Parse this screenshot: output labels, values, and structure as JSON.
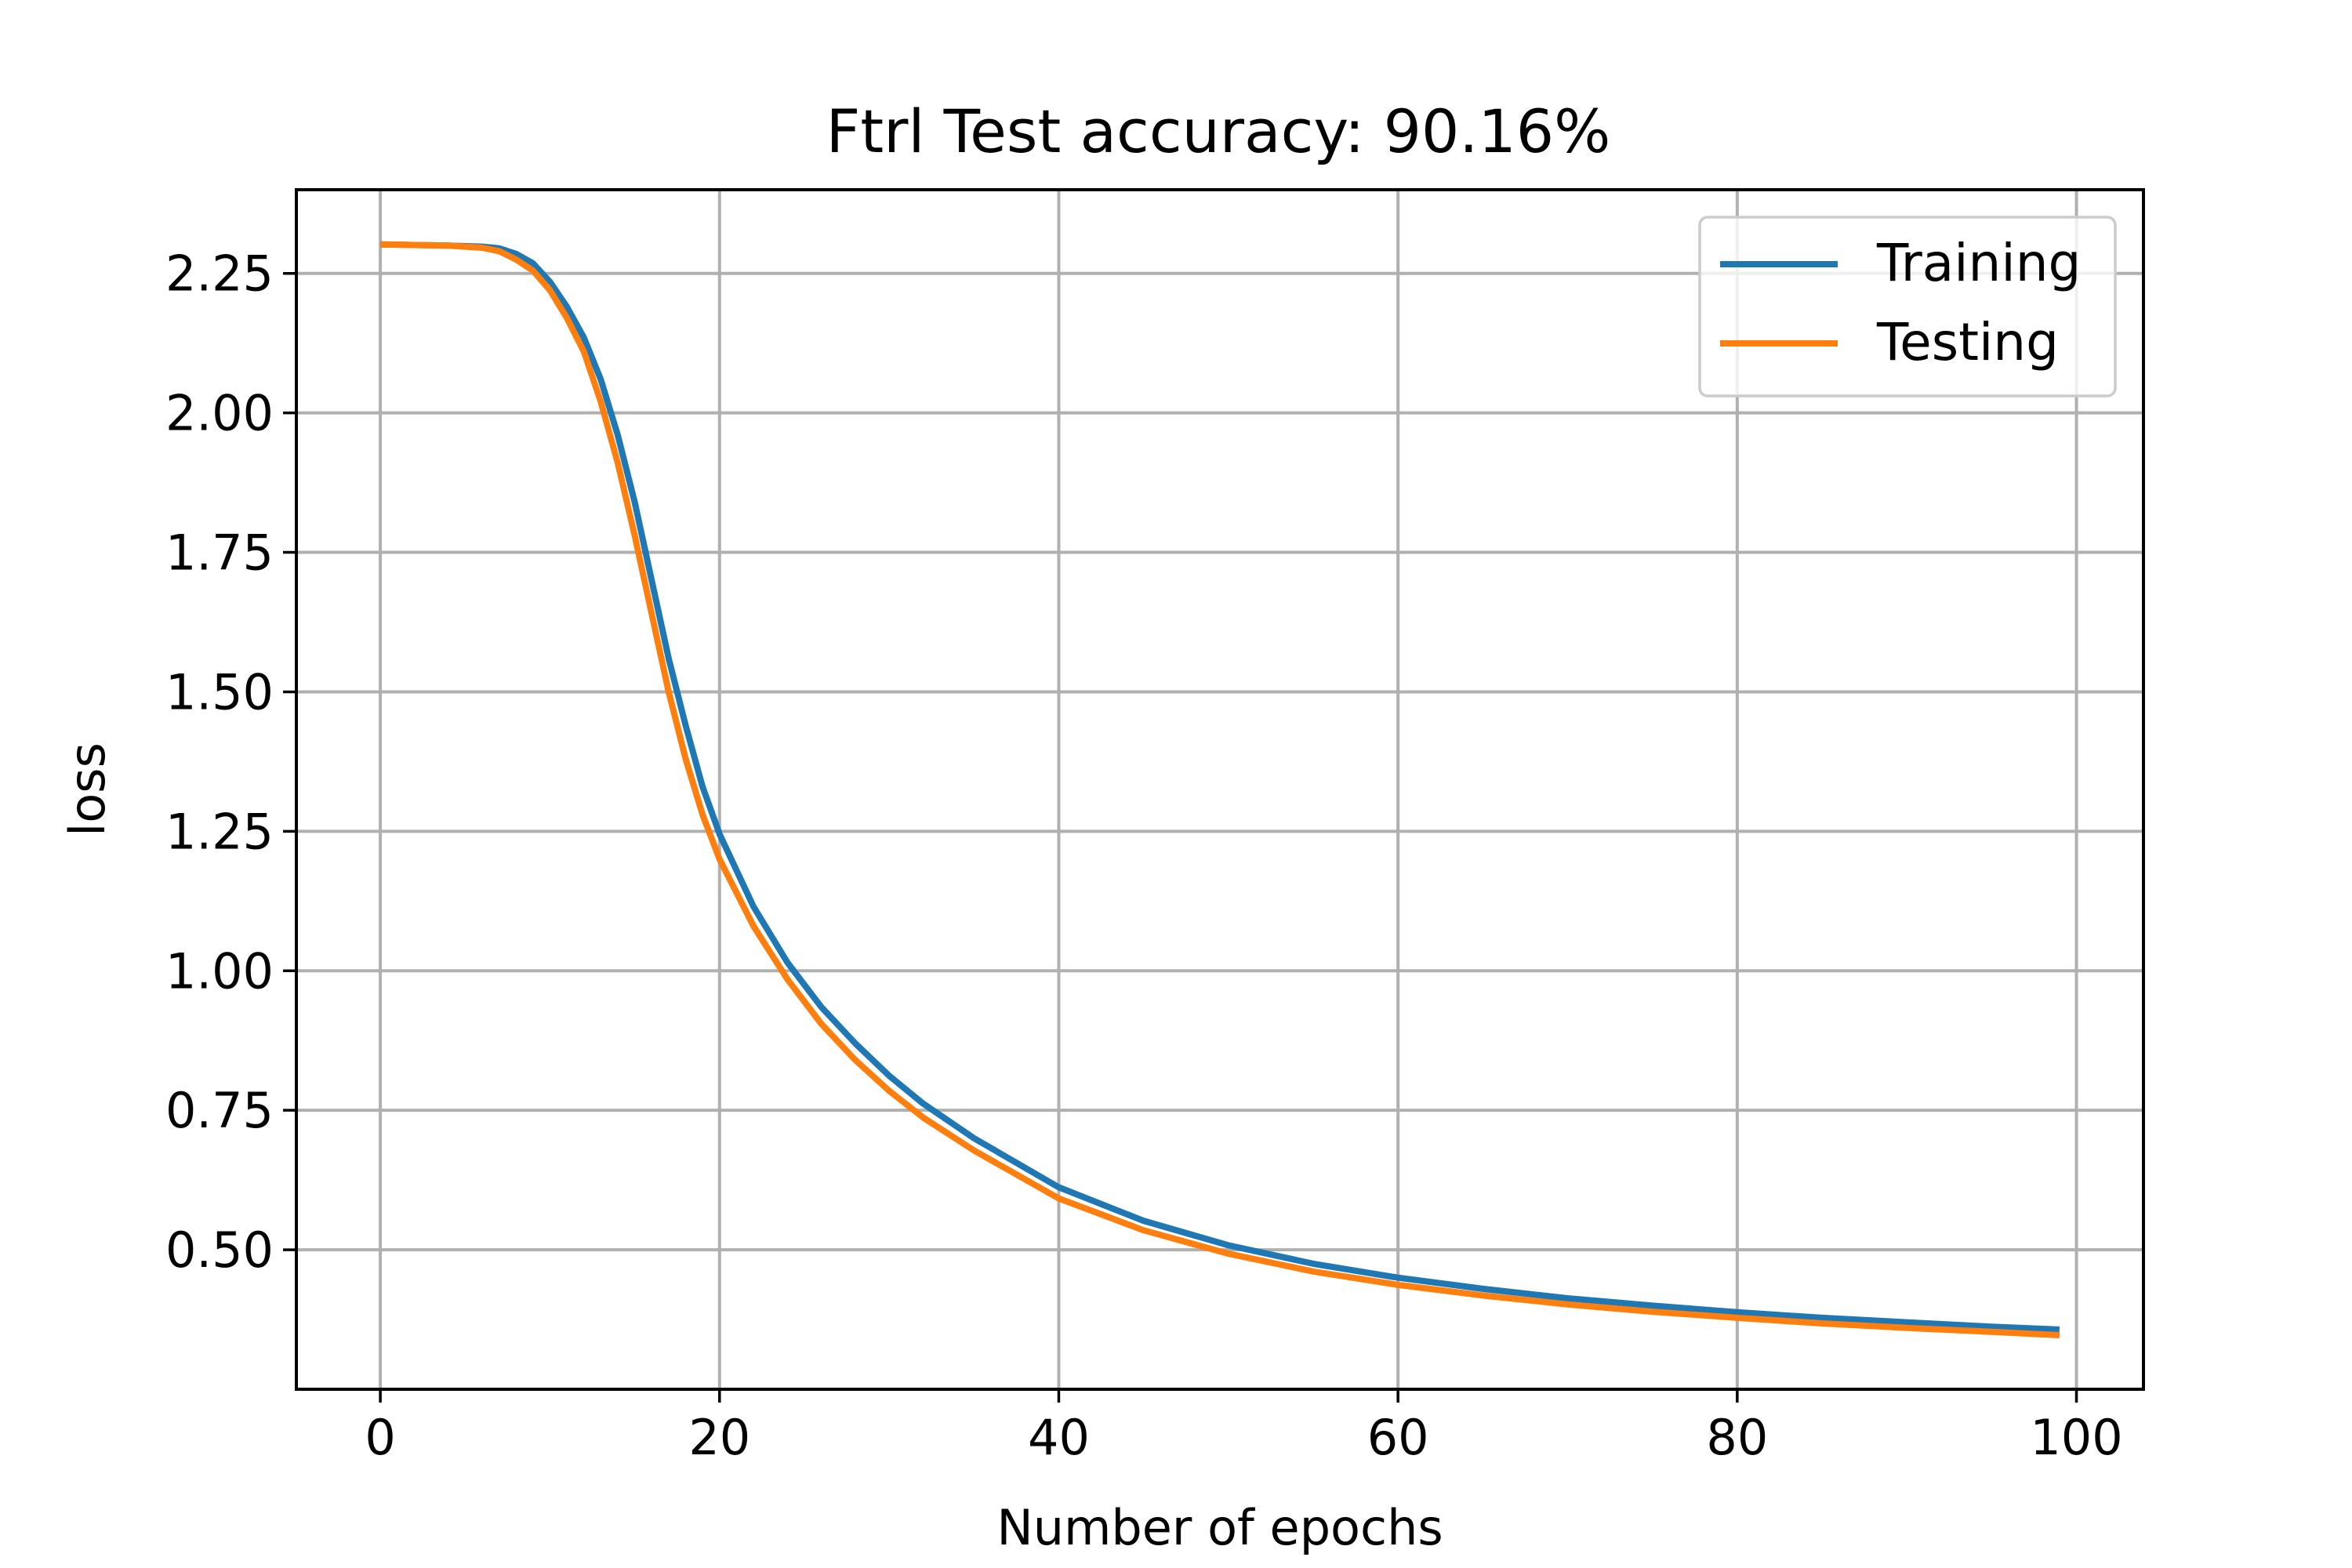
{
  "chart_data": {
    "type": "line",
    "title": "Ftrl Test accuracy: 90.16%",
    "xlabel": "Number of epochs",
    "ylabel": "loss",
    "xlim": [
      -4.95,
      103.95
    ],
    "ylim": [
      0.25,
      2.4
    ],
    "xticks": [
      0,
      20,
      40,
      60,
      80,
      100
    ],
    "yticks": [
      0.5,
      0.75,
      1.0,
      1.25,
      1.5,
      1.75,
      2.0,
      2.25
    ],
    "xtick_labels": [
      "0",
      "20",
      "40",
      "60",
      "80",
      "100"
    ],
    "ytick_labels": [
      "0.50",
      "0.75",
      "1.00",
      "1.25",
      "1.50",
      "1.75",
      "2.00",
      "2.25"
    ],
    "grid": true,
    "legend_position": "top-right",
    "series": [
      {
        "name": "Training",
        "color": "#1f77b4",
        "x": [
          0,
          2,
          4,
          6,
          7,
          8,
          9,
          10,
          11,
          12,
          13,
          14,
          15,
          16,
          17,
          18,
          19,
          20,
          22,
          24,
          26,
          28,
          30,
          32,
          35,
          40,
          45,
          50,
          55,
          60,
          65,
          70,
          75,
          80,
          85,
          90,
          95,
          99
        ],
        "values": [
          2.302,
          2.301,
          2.3,
          2.298,
          2.295,
          2.285,
          2.268,
          2.235,
          2.19,
          2.135,
          2.06,
          1.96,
          1.84,
          1.7,
          1.56,
          1.44,
          1.33,
          1.245,
          1.115,
          1.015,
          0.935,
          0.87,
          0.812,
          0.762,
          0.7,
          0.612,
          0.552,
          0.508,
          0.475,
          0.45,
          0.43,
          0.413,
          0.4,
          0.388,
          0.378,
          0.37,
          0.362,
          0.357
        ]
      },
      {
        "name": "Testing",
        "color": "#ff7f0e",
        "x": [
          0,
          2,
          4,
          6,
          7,
          8,
          9,
          10,
          11,
          12,
          13,
          14,
          15,
          16,
          17,
          18,
          19,
          20,
          22,
          24,
          26,
          28,
          30,
          32,
          35,
          40,
          45,
          50,
          55,
          60,
          65,
          70,
          75,
          80,
          85,
          90,
          95,
          99
        ],
        "values": [
          2.302,
          2.301,
          2.3,
          2.296,
          2.29,
          2.275,
          2.255,
          2.22,
          2.17,
          2.11,
          2.02,
          1.91,
          1.78,
          1.64,
          1.5,
          1.38,
          1.28,
          1.2,
          1.08,
          0.985,
          0.905,
          0.84,
          0.785,
          0.737,
          0.678,
          0.592,
          0.535,
          0.493,
          0.461,
          0.437,
          0.418,
          0.402,
          0.389,
          0.378,
          0.368,
          0.36,
          0.353,
          0.347
        ]
      }
    ]
  }
}
